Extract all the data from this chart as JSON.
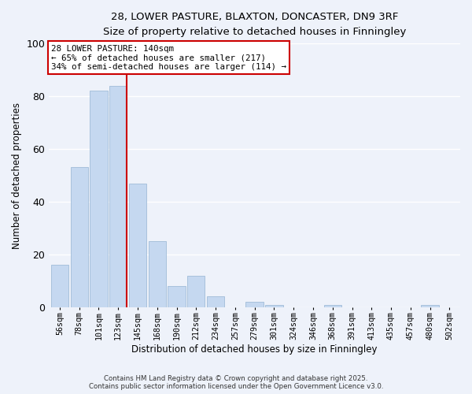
{
  "title": "28, LOWER PASTURE, BLAXTON, DONCASTER, DN9 3RF",
  "subtitle": "Size of property relative to detached houses in Finningley",
  "xlabel": "Distribution of detached houses by size in Finningley",
  "ylabel": "Number of detached properties",
  "bar_labels": [
    "56sqm",
    "78sqm",
    "101sqm",
    "123sqm",
    "145sqm",
    "168sqm",
    "190sqm",
    "212sqm",
    "234sqm",
    "257sqm",
    "279sqm",
    "301sqm",
    "324sqm",
    "346sqm",
    "368sqm",
    "391sqm",
    "413sqm",
    "435sqm",
    "457sqm",
    "480sqm",
    "502sqm"
  ],
  "bar_values": [
    16,
    53,
    82,
    84,
    47,
    25,
    8,
    12,
    4,
    0,
    2,
    1,
    0,
    0,
    1,
    0,
    0,
    0,
    0,
    1,
    0
  ],
  "bar_color": "#c5d8f0",
  "bar_edge_color": "#a0bcd8",
  "vline_color": "#cc0000",
  "annotation_line1": "28 LOWER PASTURE: 140sqm",
  "annotation_line2": "← 65% of detached houses are smaller (217)",
  "annotation_line3": "34% of semi-detached houses are larger (114) →",
  "annotation_box_color": "#ffffff",
  "annotation_box_edge": "#cc0000",
  "ylim": [
    0,
    100
  ],
  "yticks": [
    0,
    20,
    40,
    60,
    80,
    100
  ],
  "footer1": "Contains HM Land Registry data © Crown copyright and database right 2025.",
  "footer2": "Contains public sector information licensed under the Open Government Licence v3.0.",
  "bg_color": "#eef2fa",
  "grid_color": "#ffffff"
}
